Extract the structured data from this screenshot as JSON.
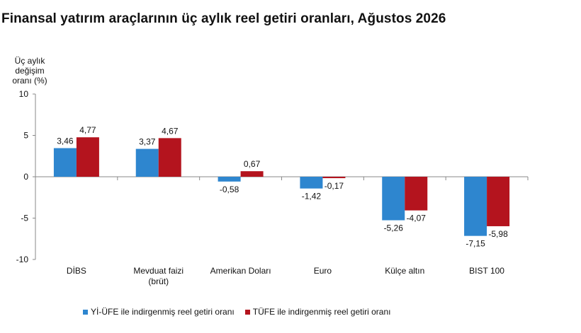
{
  "colors": {
    "series1": "#2e86cf",
    "series2": "#b4141e",
    "axis": "#888888"
  },
  "chart_data": {
    "type": "bar",
    "title": "Finansal yatırım araçlarının üç aylık reel getiri oranları, Ağustos 2026",
    "ylabel": [
      "Üç aylık değişim",
      "oranı (%)"
    ],
    "xlabel": "",
    "ylim": [
      -10,
      10
    ],
    "yticks": [
      "10",
      "5",
      "0",
      "-5",
      "-10"
    ],
    "categories": [
      [
        "DİBS"
      ],
      [
        "Mevduat faizi",
        "(brüt)"
      ],
      [
        "Amerikan Doları"
      ],
      [
        "Euro"
      ],
      [
        "Külçe altın"
      ],
      [
        "BIST 100"
      ]
    ],
    "series": [
      {
        "name": "Yİ-ÜFE ile indirgenmiş reel getiri oranı",
        "values": [
          3.46,
          3.37,
          -0.58,
          -1.42,
          -5.26,
          -7.15
        ],
        "labels": [
          "3,46",
          "3,37",
          "-0,58",
          "-1,42",
          "-5,26",
          "-7,15"
        ]
      },
      {
        "name": "TÜFE ile indirgenmiş reel getiri oranı",
        "values": [
          4.77,
          4.67,
          0.67,
          -0.17,
          -4.07,
          -5.98
        ],
        "labels": [
          "4,77",
          "4,67",
          "0,67",
          "-0,17",
          "-4,07",
          "-5,98"
        ]
      }
    ],
    "legend_position": "bottom",
    "grid": false
  }
}
